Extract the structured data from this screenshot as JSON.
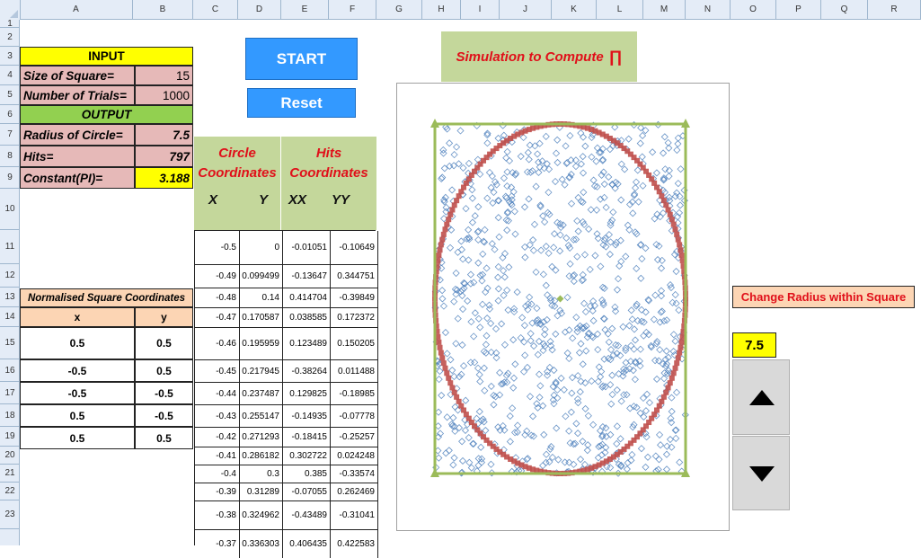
{
  "columns": [
    "A",
    "B",
    "C",
    "D",
    "E",
    "F",
    "G",
    "H",
    "I",
    "J",
    "K",
    "L",
    "M",
    "N",
    "O",
    "P",
    "Q",
    "R"
  ],
  "rows": [
    "1",
    "2",
    "3",
    "4",
    "5",
    "6",
    "7",
    "8",
    "9",
    "10",
    "11",
    "12",
    "13",
    "14",
    "15",
    "16",
    "17",
    "18",
    "19",
    "20",
    "21",
    "22",
    "23"
  ],
  "input": {
    "header": "INPUT",
    "size_label": "Size of Square=",
    "size_value": "15",
    "trials_label": "Number of Trials=",
    "trials_value": "1000"
  },
  "output": {
    "header": "OUTPUT",
    "radius_label": "Radius of Circle=",
    "radius_value": "7.5",
    "hits_label": "Hits=",
    "hits_value": "797",
    "constant_label": "Constant(PI)=",
    "constant_value": "3.188"
  },
  "buttons": {
    "start": "START",
    "reset": "Reset"
  },
  "circle_header": {
    "title_line1": "Circle",
    "title_line2": "Coordinates",
    "x": "X",
    "y": "Y"
  },
  "hits_header": {
    "title_line1": "Hits",
    "title_line2": "Coordinates",
    "xx": "XX",
    "yy": "YY"
  },
  "coordinates": [
    [
      "-0.5",
      "0",
      "-0.01051",
      "-0.10649"
    ],
    [
      "-0.49",
      "0.099499",
      "-0.13647",
      "0.344751"
    ],
    [
      "-0.48",
      "0.14",
      "0.414704",
      "-0.39849"
    ],
    [
      "-0.47",
      "0.170587",
      "0.038585",
      "0.172372"
    ],
    [
      "-0.46",
      "0.195959",
      "0.123489",
      "0.150205"
    ],
    [
      "-0.45",
      "0.217945",
      "-0.38264",
      "0.011488"
    ],
    [
      "-0.44",
      "0.237487",
      "0.129825",
      "-0.18985"
    ],
    [
      "-0.43",
      "0.255147",
      "-0.14935",
      "-0.07778"
    ],
    [
      "-0.42",
      "0.271293",
      "-0.18415",
      "-0.25257"
    ],
    [
      "-0.41",
      "0.286182",
      "0.302722",
      "0.024248"
    ],
    [
      "-0.4",
      "0.3",
      "0.385",
      "-0.33574"
    ],
    [
      "-0.39",
      "0.31289",
      "-0.07055",
      "0.262469"
    ],
    [
      "-0.38",
      "0.324962",
      "-0.43489",
      "-0.31041"
    ],
    [
      "-0.37",
      "0.336303",
      "0.406435",
      "0.422583"
    ]
  ],
  "normalised": {
    "title": "Normalised Square Coordinates",
    "col_x": "x",
    "col_y": "y",
    "rows": [
      [
        "0.5",
        "0.5"
      ],
      [
        "-0.5",
        "0.5"
      ],
      [
        "-0.5",
        "-0.5"
      ],
      [
        "0.5",
        "-0.5"
      ],
      [
        "0.5",
        "0.5"
      ]
    ]
  },
  "chart": {
    "title_text": "Simulation to Compute",
    "title_symbol": "∏",
    "colors": {
      "square": "#9bbb59",
      "circle": "#c0504d",
      "points": "#4f81bd"
    }
  },
  "radius_control": {
    "label": "Change Radius within Square",
    "value": "7.5",
    "up_icon": "triangle-up-icon",
    "down_icon": "triangle-down-icon"
  }
}
